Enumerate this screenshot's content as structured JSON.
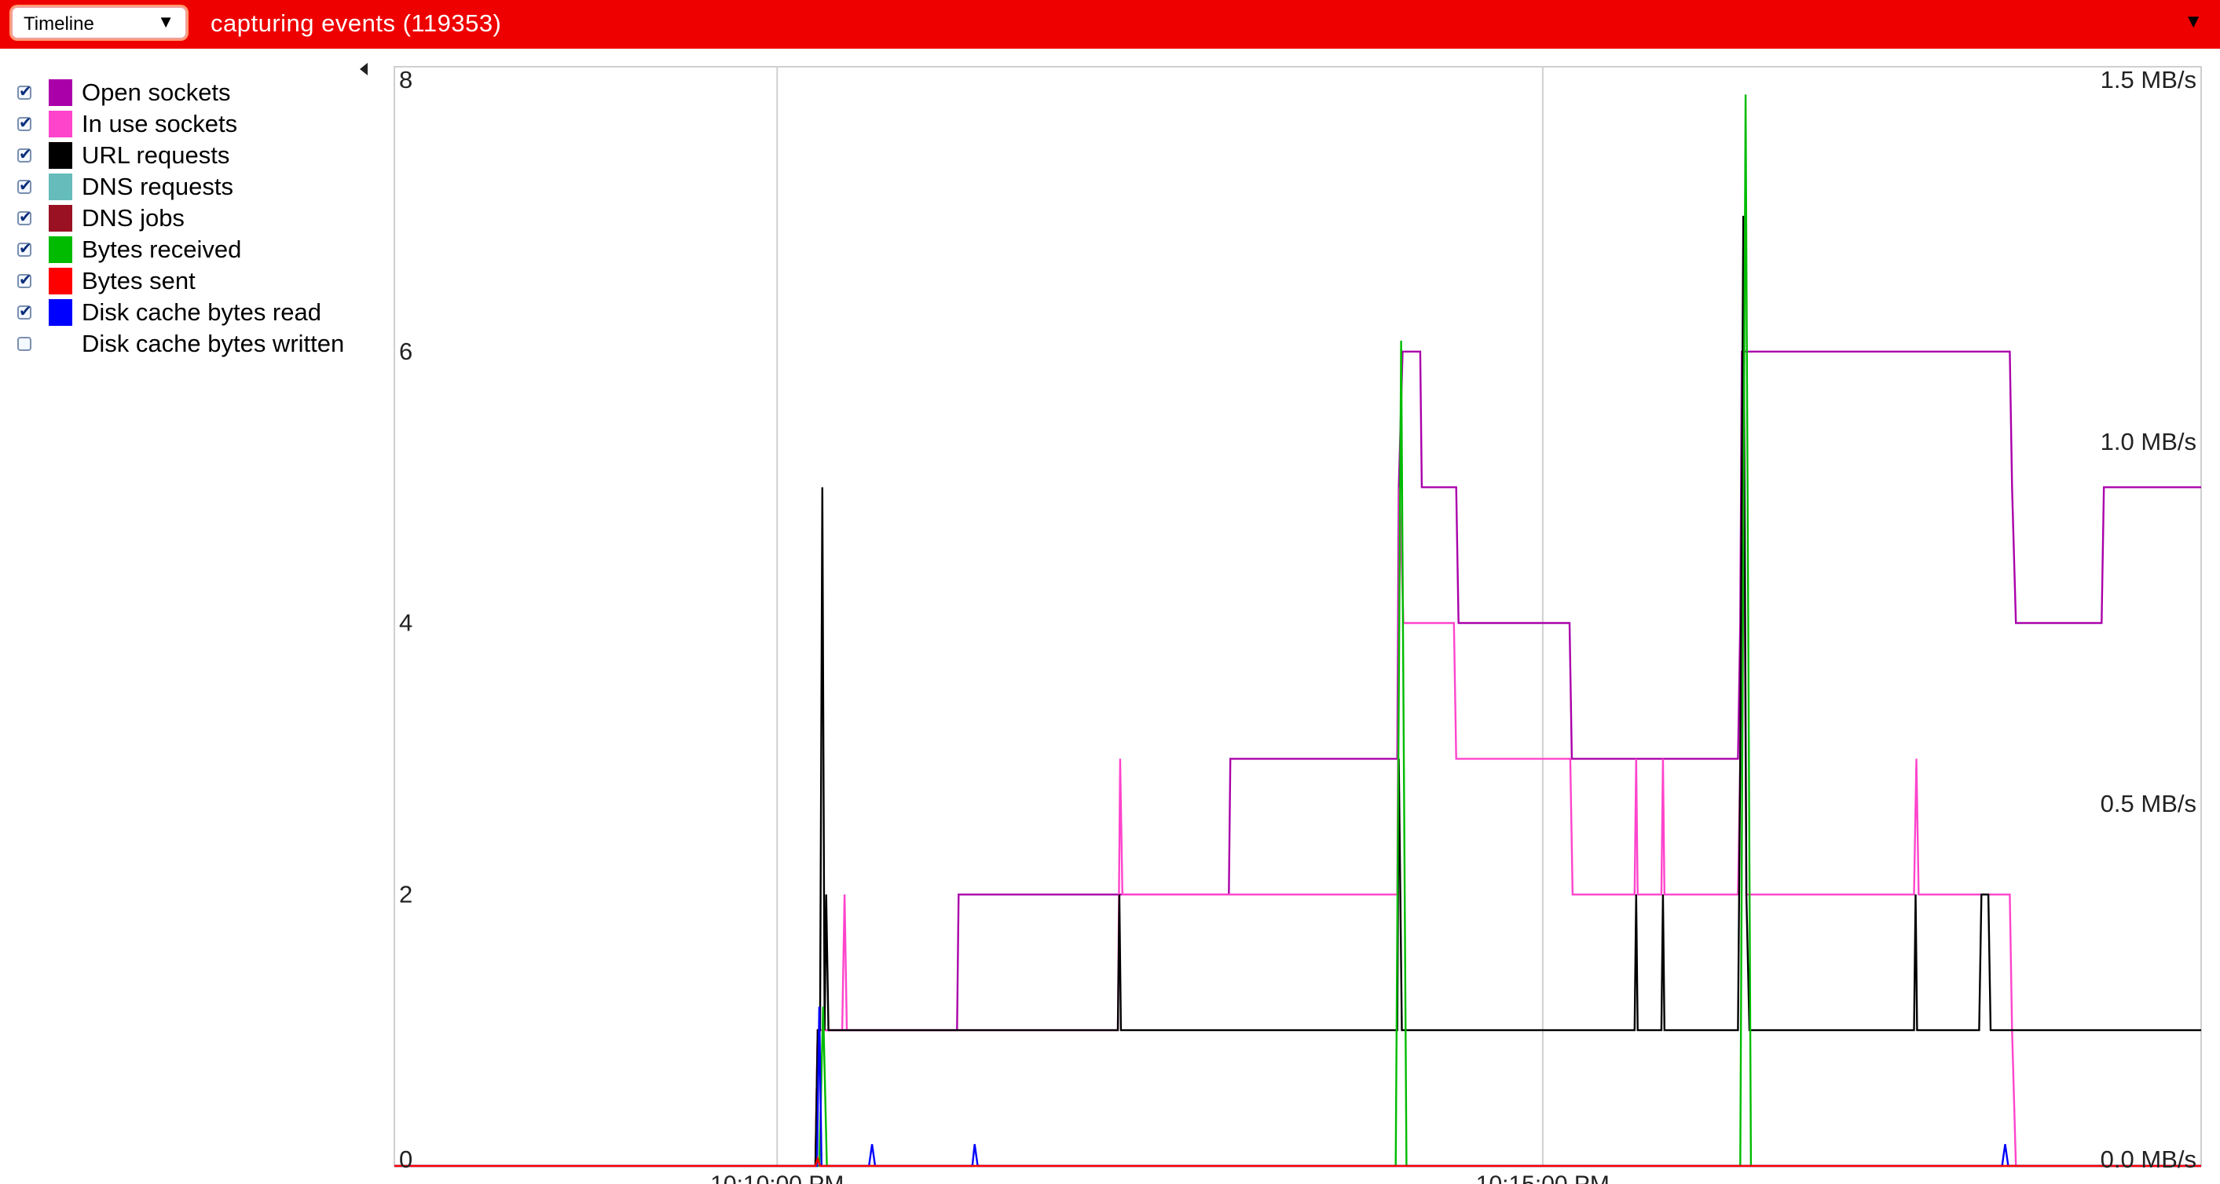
{
  "toolbar": {
    "view_selector": {
      "value": "Timeline",
      "arrow": "▼"
    },
    "status": "capturing events (119353)",
    "menu_arrow": "▼"
  },
  "colors": {
    "topbar": "#ee0000",
    "open_sockets": "#aa00aa",
    "in_use_sockets": "#ff44cc",
    "url_requests": "#000000",
    "dns_requests": "#66bbbb",
    "dns_jobs": "#991122",
    "bytes_received": "#00bb00",
    "bytes_sent": "#ff0000",
    "disk_cache_bytes_read": "#0000ff"
  },
  "legend": [
    {
      "label": "Open sockets",
      "checked": true,
      "color": "#aa00aa"
    },
    {
      "label": "In use sockets",
      "checked": true,
      "color": "#ff44cc"
    },
    {
      "label": "URL requests",
      "checked": true,
      "color": "#000000"
    },
    {
      "label": "DNS requests",
      "checked": true,
      "color": "#66bbbb"
    },
    {
      "label": "DNS jobs",
      "checked": true,
      "color": "#991122"
    },
    {
      "label": "Bytes received",
      "checked": true,
      "color": "#00bb00"
    },
    {
      "label": "Bytes sent",
      "checked": true,
      "color": "#ff0000"
    },
    {
      "label": "Disk cache bytes read",
      "checked": true,
      "color": "#0000ff"
    },
    {
      "label": "Disk cache bytes written",
      "checked": false,
      "color": ""
    }
  ],
  "chart_data": {
    "type": "line",
    "time_range_min": [
      0,
      23.6
    ],
    "left_axis": {
      "range": [
        0,
        8
      ],
      "ticks": [
        "0",
        "2",
        "4",
        "6",
        "8"
      ]
    },
    "right_axis": {
      "range": [
        0,
        1.5
      ],
      "ticks": [
        "0.0 MB/s",
        "0.5 MB/s",
        "1.0 MB/s",
        "1.5 MB/s"
      ]
    },
    "x_ticks": [
      {
        "t": 5.0,
        "label": "10:10:00 PM"
      },
      {
        "t": 15.0,
        "label": "10:15:00 PM"
      }
    ],
    "series": [
      {
        "key": "open_sockets",
        "step": true,
        "axis": "left",
        "points": [
          [
            5.5,
            0
          ],
          [
            5.53,
            1
          ],
          [
            7.35,
            1
          ],
          [
            7.37,
            2
          ],
          [
            10.9,
            2
          ],
          [
            10.92,
            3
          ],
          [
            13.1,
            3
          ],
          [
            13.12,
            5
          ],
          [
            13.17,
            6
          ],
          [
            13.4,
            6
          ],
          [
            13.42,
            5
          ],
          [
            13.87,
            5
          ],
          [
            13.9,
            4
          ],
          [
            15.35,
            4
          ],
          [
            15.38,
            3
          ],
          [
            17.55,
            3
          ],
          [
            17.58,
            4
          ],
          [
            17.6,
            6
          ],
          [
            21.1,
            6
          ],
          [
            21.13,
            5
          ],
          [
            21.18,
            4
          ],
          [
            22.3,
            4
          ],
          [
            22.33,
            5
          ],
          [
            23.6,
            5
          ]
        ]
      },
      {
        "key": "in_use_sockets",
        "step": true,
        "axis": "left",
        "points": [
          [
            5.5,
            0
          ],
          [
            5.53,
            1
          ],
          [
            5.85,
            1
          ],
          [
            5.88,
            2
          ],
          [
            5.91,
            1
          ],
          [
            9.45,
            1
          ],
          [
            9.48,
            3
          ],
          [
            9.51,
            2
          ],
          [
            13.1,
            2
          ],
          [
            13.13,
            5
          ],
          [
            13.18,
            4
          ],
          [
            13.84,
            4
          ],
          [
            13.87,
            3
          ],
          [
            15.36,
            3
          ],
          [
            15.39,
            2
          ],
          [
            16.2,
            2
          ],
          [
            16.22,
            3
          ],
          [
            16.24,
            2
          ],
          [
            16.55,
            2
          ],
          [
            16.57,
            3
          ],
          [
            16.59,
            2
          ],
          [
            17.55,
            2
          ],
          [
            17.58,
            3
          ],
          [
            17.62,
            6
          ],
          [
            17.66,
            2
          ],
          [
            19.85,
            2
          ],
          [
            19.88,
            3
          ],
          [
            19.91,
            2
          ],
          [
            21.1,
            2
          ],
          [
            21.13,
            1
          ],
          [
            21.18,
            0
          ],
          [
            23.6,
            0
          ]
        ]
      },
      {
        "key": "url_requests",
        "step": true,
        "axis": "left",
        "points": [
          [
            5.5,
            0
          ],
          [
            5.53,
            1
          ],
          [
            5.56,
            1
          ],
          [
            5.59,
            5
          ],
          [
            5.62,
            1
          ],
          [
            5.64,
            2
          ],
          [
            5.67,
            1
          ],
          [
            9.45,
            1
          ],
          [
            9.47,
            2
          ],
          [
            9.49,
            1
          ],
          [
            13.1,
            1
          ],
          [
            13.12,
            3
          ],
          [
            13.14,
            2
          ],
          [
            13.16,
            1
          ],
          [
            16.2,
            1
          ],
          [
            16.22,
            2
          ],
          [
            16.24,
            1
          ],
          [
            16.55,
            1
          ],
          [
            16.57,
            2
          ],
          [
            16.59,
            1
          ],
          [
            17.55,
            1
          ],
          [
            17.58,
            3
          ],
          [
            17.62,
            7
          ],
          [
            17.66,
            2
          ],
          [
            17.7,
            1
          ],
          [
            19.85,
            1
          ],
          [
            19.87,
            2
          ],
          [
            19.89,
            1
          ],
          [
            20.7,
            1
          ],
          [
            20.73,
            2
          ],
          [
            20.82,
            2
          ],
          [
            20.85,
            1
          ],
          [
            23.6,
            1
          ]
        ]
      },
      {
        "key": "bytes_received",
        "step": false,
        "axis": "right",
        "points": [
          [
            0,
            0
          ],
          [
            5.55,
            0
          ],
          [
            5.6,
            0.22
          ],
          [
            5.65,
            0
          ],
          [
            13.08,
            0
          ],
          [
            13.15,
            1.14
          ],
          [
            13.22,
            0
          ],
          [
            17.58,
            0
          ],
          [
            17.65,
            1.48
          ],
          [
            17.72,
            0
          ],
          [
            23.6,
            0
          ]
        ]
      },
      {
        "key": "disk_cache_bytes_read",
        "step": false,
        "axis": "right",
        "points": [
          [
            0,
            0
          ],
          [
            5.52,
            0
          ],
          [
            5.55,
            0.22
          ],
          [
            5.58,
            0
          ],
          [
            6.2,
            0
          ],
          [
            6.24,
            0.03
          ],
          [
            6.28,
            0
          ],
          [
            7.55,
            0
          ],
          [
            7.58,
            0.03
          ],
          [
            7.62,
            0
          ],
          [
            21.0,
            0
          ],
          [
            21.04,
            0.03
          ],
          [
            21.08,
            0
          ],
          [
            23.6,
            0
          ]
        ]
      },
      {
        "key": "bytes_sent",
        "step": false,
        "axis": "right",
        "points": [
          [
            0,
            0
          ],
          [
            5.5,
            0
          ],
          [
            5.53,
            0.01
          ],
          [
            5.56,
            0
          ],
          [
            23.6,
            0
          ]
        ]
      }
    ]
  }
}
